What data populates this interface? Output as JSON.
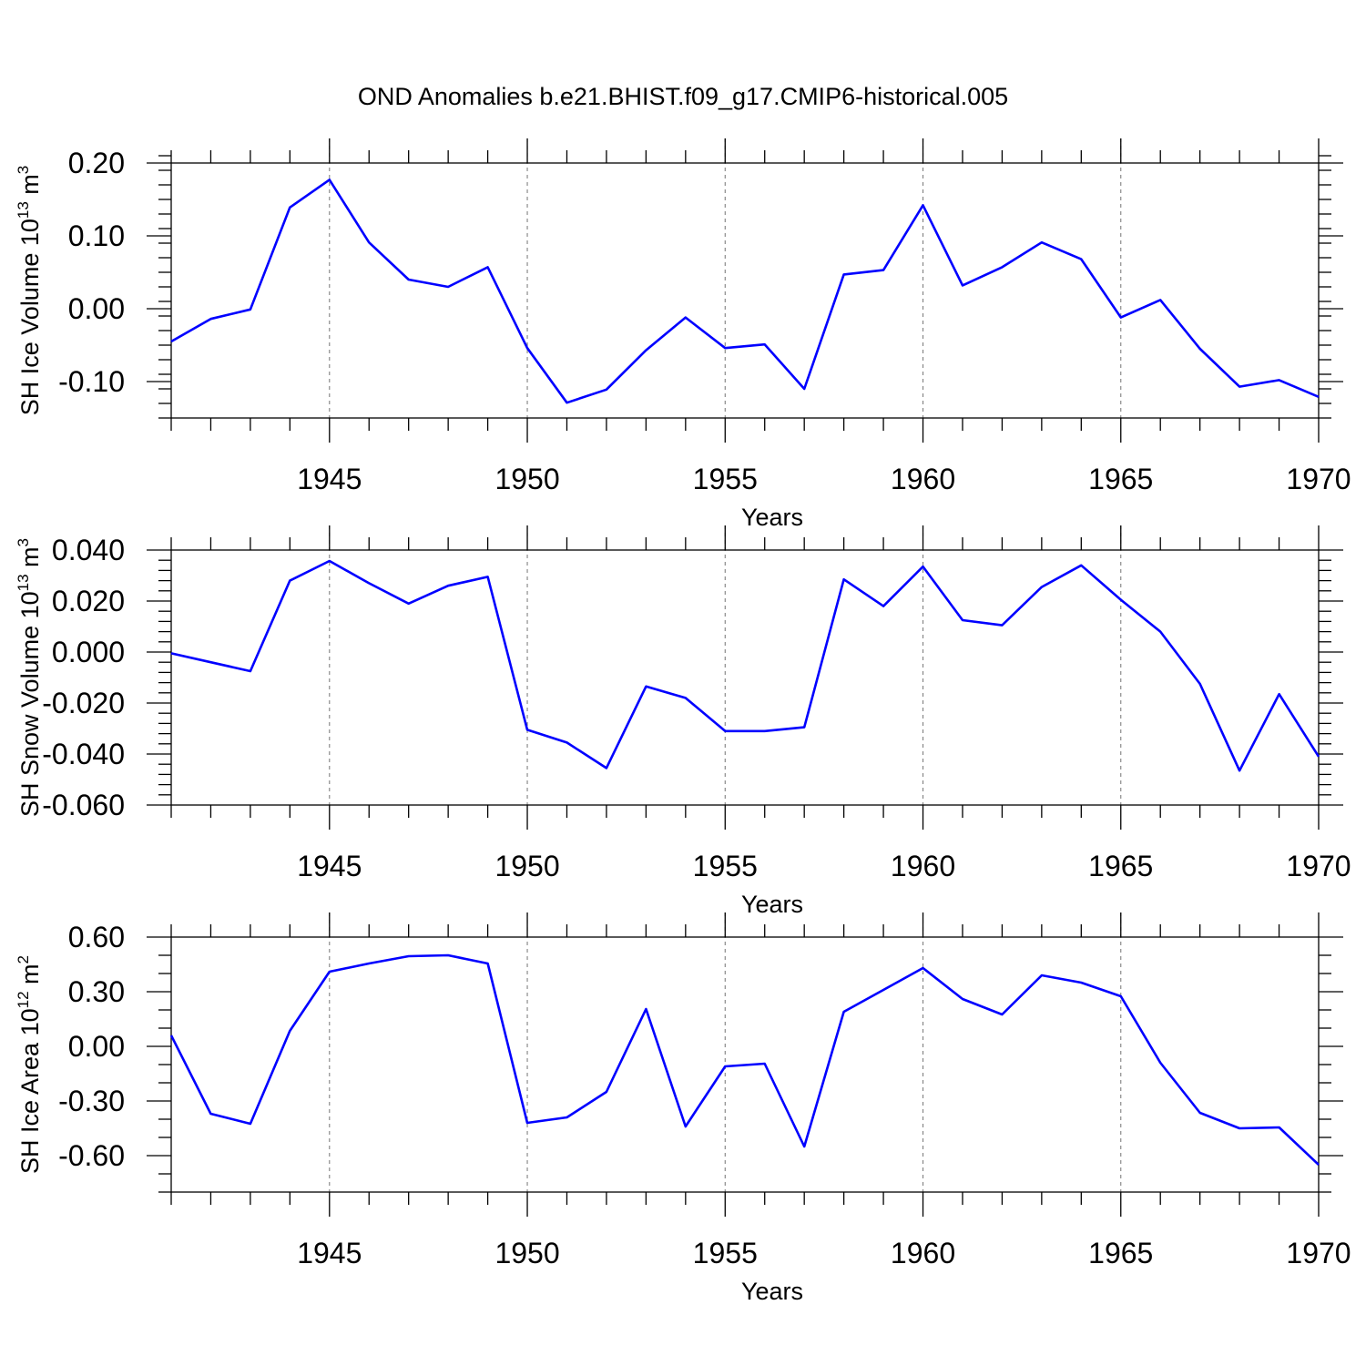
{
  "figure_title": "OND Anomalies b.e21.BHIST.f09_g17.CMIP6-historical.005",
  "colors": {
    "line": "#0000ff",
    "axis": "#000000",
    "grid": "#808080"
  },
  "chart_data": [
    {
      "type": "line",
      "ylabel_main": "SH Ice Volume 10",
      "ylabel_exp": "13",
      "ylabel_unit": " m",
      "ylabel_unit_exp": "3",
      "xlabel": "Years",
      "xlim": [
        1941,
        1970
      ],
      "ylim": [
        -0.15,
        0.2
      ],
      "y_major_ticks": [
        0.2,
        0.1,
        0.0,
        -0.1
      ],
      "y_tick_labels": [
        "0.20",
        "0.10",
        "0.00",
        "-0.10"
      ],
      "y_minor_step": 0.02,
      "x_major_ticks": [
        1945,
        1950,
        1955,
        1960,
        1965,
        1970
      ],
      "x_tick_labels": [
        "1945",
        "1950",
        "1955",
        "1960",
        "1965",
        "1970"
      ],
      "grid_x": [
        1945,
        1950,
        1955,
        1960,
        1965
      ],
      "series": [
        {
          "name": "SH Ice Volume",
          "x": [
            1941,
            1942,
            1943,
            1944,
            1945,
            1946,
            1947,
            1948,
            1949,
            1950,
            1951,
            1952,
            1953,
            1954,
            1955,
            1956,
            1957,
            1958,
            1959,
            1960,
            1961,
            1962,
            1963,
            1964,
            1965,
            1966,
            1967,
            1968,
            1969,
            1970
          ],
          "values": [
            -0.045,
            -0.014,
            -0.001,
            0.139,
            0.177,
            0.091,
            0.04,
            0.03,
            0.057,
            -0.054,
            -0.129,
            -0.111,
            -0.057,
            -0.012,
            -0.054,
            -0.049,
            -0.11,
            0.047,
            0.053,
            0.142,
            0.032,
            0.057,
            0.091,
            0.068,
            -0.012,
            0.012,
            -0.055,
            -0.107,
            -0.098,
            -0.121
          ]
        }
      ]
    },
    {
      "type": "line",
      "ylabel_main": "SH Snow Volume 10",
      "ylabel_exp": "13",
      "ylabel_unit": " m",
      "ylabel_unit_exp": "3",
      "xlabel": "Years",
      "xlim": [
        1941,
        1970
      ],
      "ylim": [
        -0.06,
        0.04
      ],
      "y_major_ticks": [
        0.04,
        0.02,
        0.0,
        -0.02,
        -0.04,
        -0.06
      ],
      "y_tick_labels": [
        "0.040",
        "0.020",
        "0.000",
        "-0.020",
        "-0.040",
        "-0.060"
      ],
      "y_minor_step": 0.004,
      "x_major_ticks": [
        1945,
        1950,
        1955,
        1960,
        1965,
        1970
      ],
      "x_tick_labels": [
        "1945",
        "1950",
        "1955",
        "1960",
        "1965",
        "1970"
      ],
      "grid_x": [
        1945,
        1950,
        1955,
        1960,
        1965
      ],
      "series": [
        {
          "name": "SH Snow Volume",
          "x": [
            1941,
            1942,
            1943,
            1944,
            1945,
            1946,
            1947,
            1948,
            1949,
            1950,
            1951,
            1952,
            1953,
            1954,
            1955,
            1956,
            1957,
            1958,
            1959,
            1960,
            1961,
            1962,
            1963,
            1964,
            1965,
            1966,
            1967,
            1968,
            1969,
            1970
          ],
          "values": [
            -0.0005,
            -0.004,
            -0.0075,
            0.028,
            0.0357,
            0.027,
            0.019,
            0.026,
            0.0295,
            -0.0305,
            -0.0355,
            -0.0455,
            -0.0135,
            -0.018,
            -0.031,
            -0.031,
            -0.0295,
            0.0285,
            0.018,
            0.0335,
            0.0125,
            0.0105,
            0.0255,
            0.034,
            0.0205,
            0.008,
            -0.0125,
            -0.0465,
            -0.0165,
            -0.041
          ]
        }
      ]
    },
    {
      "type": "line",
      "ylabel_main": "SH Ice Area 10",
      "ylabel_exp": "12",
      "ylabel_unit": " m",
      "ylabel_unit_exp": "2",
      "xlabel": "Years",
      "xlim": [
        1941,
        1970
      ],
      "ylim": [
        -0.8,
        0.6
      ],
      "y_major_ticks": [
        0.6,
        0.3,
        0.0,
        -0.3,
        -0.6
      ],
      "y_tick_labels": [
        "0.60",
        "0.30",
        "0.00",
        "-0.30",
        "-0.60"
      ],
      "y_minor_step": 0.1,
      "x_major_ticks": [
        1945,
        1950,
        1955,
        1960,
        1965,
        1970
      ],
      "x_tick_labels": [
        "1945",
        "1950",
        "1955",
        "1960",
        "1965",
        "1970"
      ],
      "grid_x": [
        1945,
        1950,
        1955,
        1960,
        1965
      ],
      "series": [
        {
          "name": "SH Ice Area",
          "x": [
            1941,
            1942,
            1943,
            1944,
            1945,
            1946,
            1947,
            1948,
            1949,
            1950,
            1951,
            1952,
            1953,
            1954,
            1955,
            1956,
            1957,
            1958,
            1959,
            1960,
            1961,
            1962,
            1963,
            1964,
            1965,
            1966,
            1967,
            1968,
            1969,
            1970
          ],
          "values": [
            0.06,
            -0.37,
            -0.425,
            0.085,
            0.41,
            0.455,
            0.495,
            0.5,
            0.455,
            -0.42,
            -0.39,
            -0.25,
            0.205,
            -0.44,
            -0.11,
            -0.095,
            -0.55,
            0.19,
            0.31,
            0.43,
            0.26,
            0.175,
            0.39,
            0.35,
            0.275,
            -0.09,
            -0.365,
            -0.45,
            -0.445,
            -0.65
          ]
        }
      ]
    }
  ]
}
